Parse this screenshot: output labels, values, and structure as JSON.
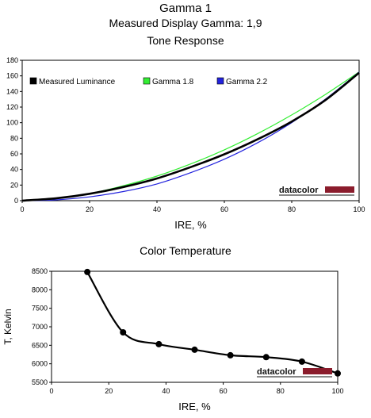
{
  "page": {
    "title": "Gamma 1",
    "subtitle": "Measured Display Gamma: 1,9"
  },
  "chart_data": [
    {
      "type": "line",
      "title": "Tone Response",
      "xlabel": "IRE, %",
      "ylabel": "",
      "xlim": [
        0,
        100
      ],
      "ylim": [
        0,
        180
      ],
      "xticks": [
        0,
        20,
        40,
        60,
        80,
        100
      ],
      "yticks": [
        0,
        20,
        40,
        60,
        80,
        100,
        120,
        140,
        160,
        180
      ],
      "grid": false,
      "legend_position": "top",
      "watermark": "datacolor",
      "series": [
        {
          "name": "Measured Luminance",
          "color": "#000000",
          "x": [
            0,
            10,
            20,
            30,
            40,
            50,
            60,
            70,
            80,
            90,
            100
          ],
          "y": [
            0,
            3,
            8.8,
            17.5,
            28.5,
            43,
            59.5,
            79,
            101.5,
            129,
            164
          ]
        },
        {
          "name": "Gamma 1.8",
          "color": "#33ee33",
          "x": [
            0,
            10,
            20,
            30,
            40,
            50,
            60,
            70,
            80,
            90,
            100
          ],
          "y": [
            0,
            2.6,
            9.1,
            19.1,
            31.5,
            47.1,
            65.2,
            86.2,
            109.9,
            136.2,
            165
          ]
        },
        {
          "name": "Gamma 2.2",
          "color": "#2222dd",
          "x": [
            0,
            10,
            20,
            30,
            40,
            50,
            60,
            70,
            80,
            90,
            100
          ],
          "y": [
            0,
            1,
            4.9,
            11.7,
            21.5,
            35.9,
            53.2,
            74.5,
            100.1,
            130.2,
            165
          ]
        }
      ]
    },
    {
      "type": "line",
      "title": "Color Temperature",
      "xlabel": "IRE, %",
      "ylabel": "T, Kelvin",
      "xlim": [
        0,
        100
      ],
      "ylim": [
        5500,
        8500
      ],
      "xticks": [
        0,
        20,
        40,
        60,
        80,
        100
      ],
      "yticks": [
        5500,
        6000,
        6500,
        7000,
        7500,
        8000,
        8500
      ],
      "grid": false,
      "watermark": "datacolor",
      "series": [
        {
          "color": "#000000",
          "x": [
            12.5,
            25,
            37.5,
            50,
            62.5,
            75,
            87.5,
            100
          ],
          "y": [
            8480,
            6850,
            6530,
            6380,
            6230,
            6180,
            6060,
            5740
          ]
        }
      ]
    }
  ]
}
